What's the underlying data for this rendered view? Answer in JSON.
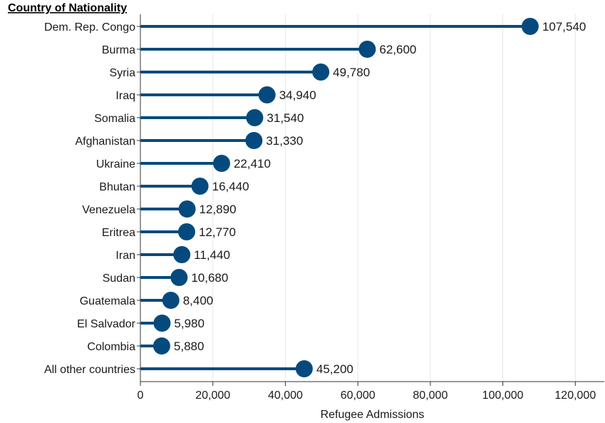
{
  "chart_data": {
    "type": "lollipop",
    "column_header": "Country of Nationality",
    "xlabel": "Refugee Admissions",
    "ylabel": "",
    "xlim": [
      0,
      128000
    ],
    "xticks": [
      0,
      20000,
      40000,
      60000,
      80000,
      100000,
      120000
    ],
    "xtick_labels": [
      "0",
      "20,000",
      "40,000",
      "60,000",
      "80,000",
      "100,000",
      "120,000"
    ],
    "grid": "vertical",
    "colors": {
      "series": "#054a7e",
      "grid": "#e6e6e6",
      "axis": "#333333"
    },
    "categories": [
      "Dem. Rep. Congo",
      "Burma",
      "Syria",
      "Iraq",
      "Somalia",
      "Afghanistan",
      "Ukraine",
      "Bhutan",
      "Venezuela",
      "Eritrea",
      "Iran",
      "Sudan",
      "Guatemala",
      "El Salvador",
      "Colombia",
      "All other countries"
    ],
    "values": [
      107540,
      62600,
      49780,
      34940,
      31540,
      31330,
      22410,
      16440,
      12890,
      12770,
      11440,
      10680,
      8400,
      5980,
      5880,
      45200
    ],
    "value_labels": [
      "107,540",
      "62,600",
      "49,780",
      "34,940",
      "31,540",
      "31,330",
      "22,410",
      "16,440",
      "12,890",
      "12,770",
      "11,440",
      "10,680",
      "8,400",
      "5,980",
      "5,880",
      "45,200"
    ]
  }
}
